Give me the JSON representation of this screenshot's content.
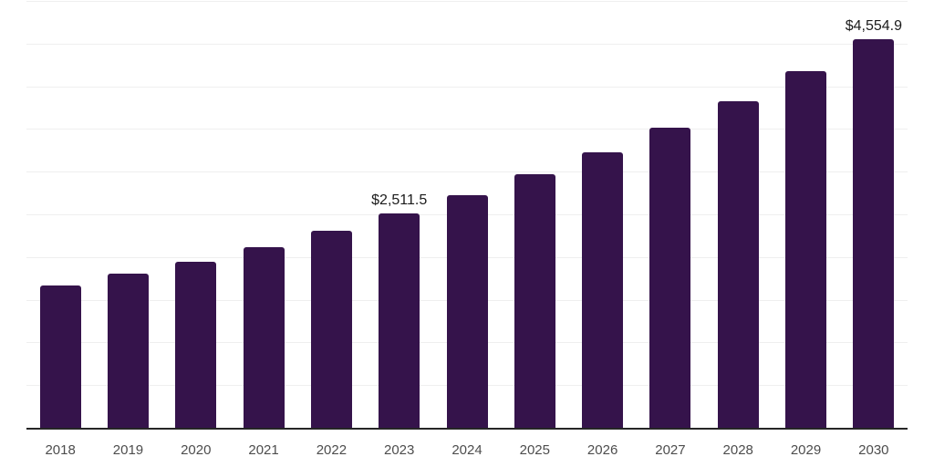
{
  "chart_data": {
    "type": "bar",
    "title": "",
    "xlabel": "",
    "ylabel": "",
    "categories": [
      "2018",
      "2019",
      "2020",
      "2021",
      "2022",
      "2023",
      "2024",
      "2025",
      "2026",
      "2027",
      "2028",
      "2029",
      "2030"
    ],
    "values": [
      1667,
      1808,
      1943,
      2117,
      2312,
      2511.5,
      2725,
      2965,
      3225,
      3520,
      3828,
      4182,
      4554.9
    ],
    "point_labels": [
      "",
      "",
      "",
      "",
      "",
      "$2,511.5",
      "",
      "",
      "",
      "",
      "",
      "",
      "$4,554.9"
    ],
    "ylim": [
      0,
      5000
    ],
    "gridline_step": 500,
    "grid": "horizontal",
    "legend": "none",
    "y_axis_tick_labels_visible": false
  },
  "chart_style": {
    "bar_color": "#35134B",
    "gridline_color": "#efefef",
    "axis_line_color": "#262626",
    "tick_label_color": "#4d4d4d",
    "data_label_color": "#1b1b1b",
    "background_color": "#ffffff"
  }
}
